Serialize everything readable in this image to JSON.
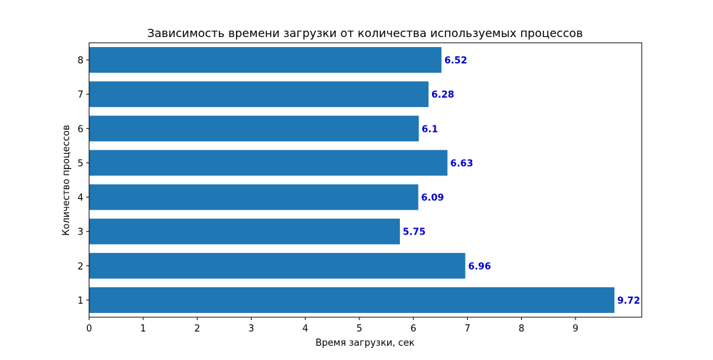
{
  "chart_data": {
    "type": "bar",
    "orientation": "horizontal",
    "title": "Зависимость времени загрузки от количества используемых процессов",
    "xlabel": "Время загрузки, сек",
    "ylabel": "Количество процессов",
    "categories": [
      "1",
      "2",
      "3",
      "4",
      "5",
      "6",
      "7",
      "8"
    ],
    "values": [
      9.72,
      6.96,
      5.75,
      6.09,
      6.63,
      6.1,
      6.28,
      6.52
    ],
    "data_labels": [
      "9.72",
      "6.96",
      "5.75",
      "6.09",
      "6.63",
      "6.1",
      "6.28",
      "6.52"
    ],
    "xticks": [
      "0",
      "1",
      "2",
      "3",
      "4",
      "5",
      "6",
      "7",
      "8",
      "9"
    ],
    "xlim": [
      0,
      10.2
    ],
    "grid": false,
    "colors": {
      "bar": "#1f77b4",
      "data_label": "#0000cd",
      "axis": "#000000"
    }
  }
}
